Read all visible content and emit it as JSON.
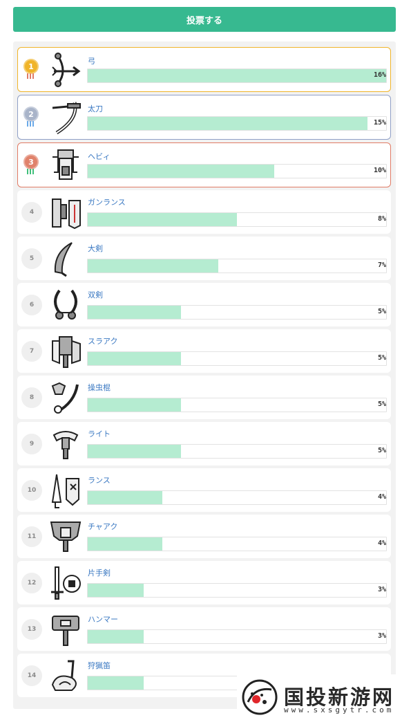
{
  "vote_button": {
    "label": "投票する"
  },
  "colors": {
    "accent": "#37b990",
    "bar_fill": "#b5ecd1",
    "name_text": "#3a78c2",
    "gold": "#f0b429",
    "silver": "#a9b4c9",
    "bronze": "#e0826b"
  },
  "rankings": [
    {
      "rank": "1",
      "name": "弓",
      "percent": "16%",
      "value": 16,
      "icon": "bow-icon",
      "medal": "gold"
    },
    {
      "rank": "2",
      "name": "太刀",
      "percent": "15%",
      "value": 15,
      "icon": "long-sword-icon",
      "medal": "silver"
    },
    {
      "rank": "3",
      "name": "ヘビィ",
      "percent": "10%",
      "value": 10,
      "icon": "heavy-bowgun-icon",
      "medal": "bronze"
    },
    {
      "rank": "4",
      "name": "ガンランス",
      "percent": "8%",
      "value": 8,
      "icon": "gunlance-icon"
    },
    {
      "rank": "5",
      "name": "大剣",
      "percent": "7%",
      "value": 7,
      "icon": "great-sword-icon"
    },
    {
      "rank": "6",
      "name": "双剣",
      "percent": "5%",
      "value": 5,
      "icon": "dual-blades-icon"
    },
    {
      "rank": "7",
      "name": "スラアク",
      "percent": "5%",
      "value": 5,
      "icon": "switch-axe-icon"
    },
    {
      "rank": "8",
      "name": "操虫棍",
      "percent": "5%",
      "value": 5,
      "icon": "insect-glaive-icon"
    },
    {
      "rank": "9",
      "name": "ライト",
      "percent": "5%",
      "value": 5,
      "icon": "light-bowgun-icon"
    },
    {
      "rank": "10",
      "name": "ランス",
      "percent": "4%",
      "value": 4,
      "icon": "lance-icon"
    },
    {
      "rank": "11",
      "name": "チャアク",
      "percent": "4%",
      "value": 4,
      "icon": "charge-blade-icon"
    },
    {
      "rank": "12",
      "name": "片手剣",
      "percent": "3%",
      "value": 3,
      "icon": "sword-and-shield-icon"
    },
    {
      "rank": "13",
      "name": "ハンマー",
      "percent": "3%",
      "value": 3,
      "icon": "hammer-icon"
    },
    {
      "rank": "14",
      "name": "狩猟笛",
      "percent": "3%",
      "value": 3,
      "icon": "hunting-horn-icon"
    }
  ],
  "scale_max_percent": 16,
  "watermark": {
    "title": "国投新游网",
    "url": "www.sxsgytr.com"
  }
}
